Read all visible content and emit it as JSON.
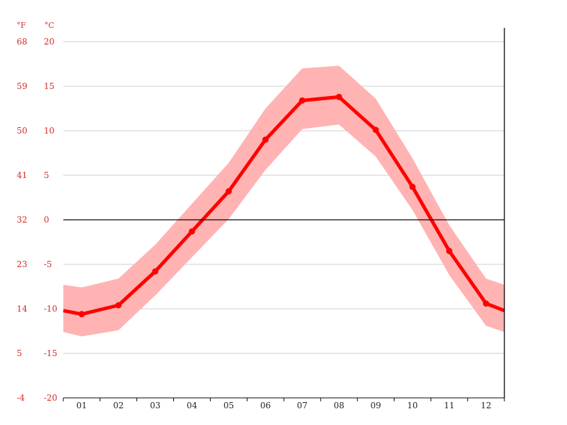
{
  "chart_data": {
    "type": "line",
    "title": "",
    "units": {
      "fahrenheit": "°F",
      "celsius": "°C"
    },
    "categories": [
      "01",
      "02",
      "03",
      "04",
      "05",
      "06",
      "07",
      "08",
      "09",
      "10",
      "11",
      "12"
    ],
    "series": [
      {
        "values": [
          -10.6,
          -9.6,
          -5.8,
          -1.3,
          3.2,
          9.0,
          13.4,
          13.8,
          10.1,
          3.7,
          -3.5,
          -9.4
        ]
      }
    ],
    "range_band": {
      "upper": [
        -7.6,
        -6.6,
        -2.8,
        1.8,
        6.4,
        12.5,
        17.0,
        17.3,
        13.6,
        6.9,
        -0.6,
        -6.6
      ],
      "lower": [
        -13.1,
        -12.4,
        -8.5,
        -4.2,
        0.1,
        5.6,
        10.2,
        10.7,
        7.1,
        1.1,
        -6.2,
        -11.9
      ]
    },
    "edge_values": {
      "left": -10.2,
      "right": -10.2,
      "left_upper": -7.3,
      "right_upper": -7.3,
      "left_lower": -12.6,
      "right_lower": -12.6
    },
    "y_ticks_c": [
      "20",
      "15",
      "10",
      "5",
      "0",
      "-5",
      "-10",
      "-15",
      "-20"
    ],
    "y_ticks_f": [
      "68",
      "59",
      "50",
      "41",
      "32",
      "23",
      "14",
      "5",
      "-4"
    ],
    "ylim": [
      -20,
      20
    ],
    "grid": true,
    "legend": "none",
    "colors": {
      "line": "#ff0000",
      "band": "#ffb3b3",
      "axis_text": "#d12a2a",
      "grid": "#cccccc",
      "zero_line": "#000000"
    }
  }
}
